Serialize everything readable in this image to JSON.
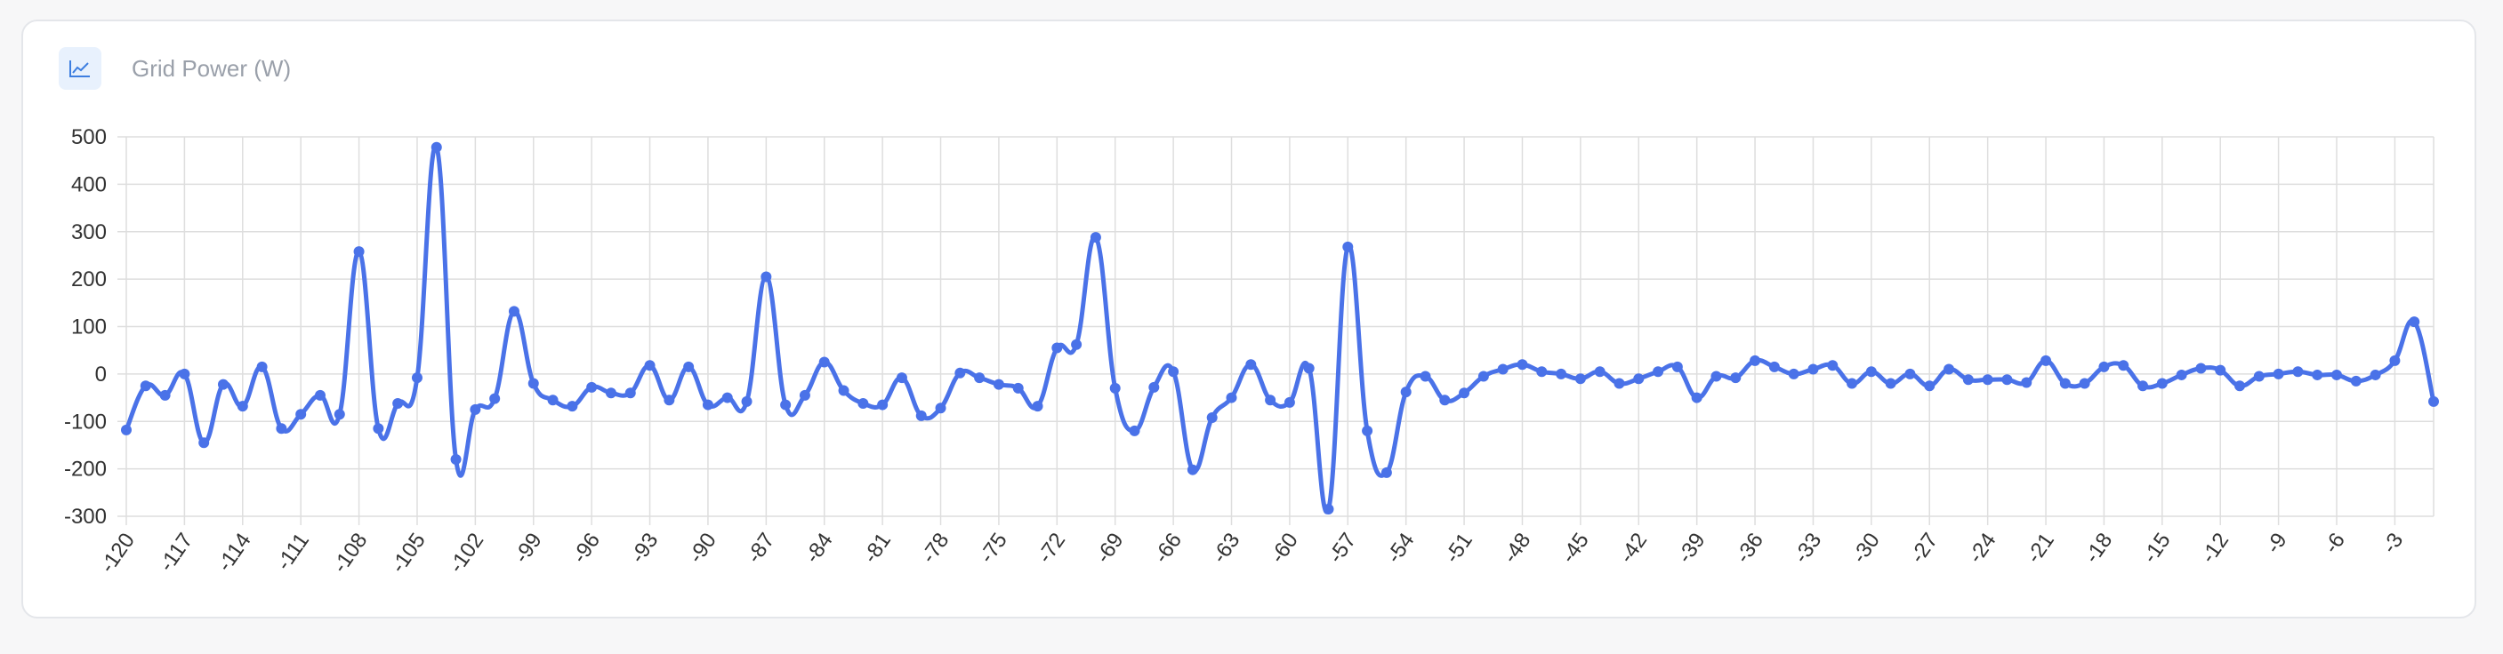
{
  "card": {
    "title": "Grid Power (W)",
    "icon": "line-chart-icon"
  },
  "colors": {
    "line": "#4a72e8",
    "grid": "#dedede",
    "icon": "#3d7ee0"
  },
  "chart_data": {
    "type": "line",
    "title": "Grid Power (W)",
    "xlabel": "",
    "ylabel": "",
    "ylim": [
      -300,
      500
    ],
    "yticks": [
      500,
      400,
      300,
      200,
      100,
      0,
      -100,
      -200,
      -300
    ],
    "xticks": [
      -120,
      -117,
      -114,
      -111,
      -108,
      -105,
      -102,
      -99,
      -96,
      -93,
      -90,
      -87,
      -84,
      -81,
      -78,
      -75,
      -72,
      -69,
      -66,
      -63,
      -60,
      -57,
      -54,
      -51,
      -48,
      -45,
      -42,
      -39,
      -36,
      -33,
      -30,
      -27,
      -24,
      -21,
      -18,
      -15,
      -12,
      -9,
      -6,
      -3
    ],
    "x_start": -120,
    "x_end": -1,
    "grid": true,
    "legend": false,
    "series": [
      {
        "name": "",
        "values": [
          -118,
          -25,
          -45,
          0,
          -145,
          -22,
          -68,
          15,
          -115,
          -85,
          -45,
          -85,
          258,
          -115,
          -62,
          -8,
          478,
          -180,
          -75,
          -52,
          132,
          -20,
          -55,
          -68,
          -28,
          -40,
          -40,
          18,
          -55,
          15,
          -65,
          -50,
          -58,
          205,
          -65,
          -45,
          25,
          -35,
          -62,
          -65,
          -8,
          -88,
          -72,
          2,
          -8,
          -22,
          -30,
          -68,
          55,
          62,
          288,
          -30,
          -120,
          -28,
          5,
          -202,
          -92,
          -50,
          20,
          -55,
          -60,
          12,
          -285,
          268,
          -120,
          -208,
          -38,
          -5,
          -55,
          -40,
          -5,
          10,
          20,
          5,
          0,
          -10,
          5,
          -20,
          -10,
          5,
          15,
          -50,
          -5,
          -8,
          28,
          15,
          0,
          10,
          18,
          -20,
          5,
          -20,
          0,
          -25,
          10,
          -12,
          -12,
          -12,
          -18,
          28,
          -20,
          -20,
          15,
          18,
          -25,
          -20,
          -2,
          12,
          8,
          -25,
          -5,
          0,
          5,
          -2,
          -2,
          -15,
          -2,
          28,
          110,
          -58
        ]
      }
    ]
  }
}
